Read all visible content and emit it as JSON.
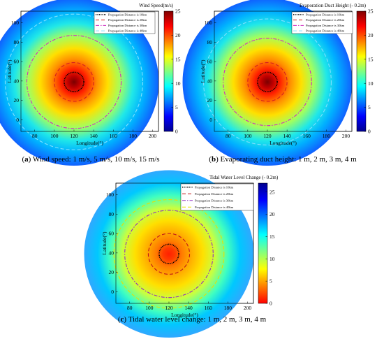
{
  "chart_data": [
    {
      "type": "heatmap",
      "panel_label": "(a)",
      "caption": "Wind speed: 1 m/s, 5 m/s, 10 m/s, 15 m/s",
      "colorbar_title": "Wind Speed(m/s)",
      "xlabel": "Longitude(°)",
      "ylabel": "Latitude(°)",
      "colormap": "jet",
      "xlim": [
        66,
        206
      ],
      "ylim": [
        -12,
        112
      ],
      "xticks": [
        80,
        100,
        120,
        140,
        160,
        180,
        200
      ],
      "yticks": [
        0,
        20,
        40,
        60,
        80,
        100
      ],
      "clim": [
        0,
        25
      ],
      "colorbar_ticks": [
        0,
        5,
        10,
        15,
        20,
        25
      ],
      "field": {
        "center": [
          120,
          39
        ],
        "radius": 89
      },
      "contours": [
        {
          "name": "Propagation Distance is 10km",
          "radius": 10,
          "color": "#000000",
          "dash": "dotted"
        },
        {
          "name": "Propagation Distance is 20km",
          "radius": 20,
          "color": "#d42020",
          "dash": "dashed"
        },
        {
          "name": "Propagation Distance is 30km",
          "radius": 48,
          "color": "#d030c0",
          "dash": "dashdot"
        },
        {
          "name": "Propagation Distance is 40km",
          "radius": 70,
          "color": "#80e0ff",
          "dash": "dashed"
        }
      ]
    },
    {
      "type": "heatmap",
      "panel_label": "(b)",
      "caption": "Evaporating duct height: 1 m, 2 m, 3 m, 4 m",
      "colorbar_title": "Evaporation Duct Height (- 0.2m)",
      "xlabel": "Longitude(°)",
      "ylabel": "Latitude(°)",
      "colormap": "jet",
      "xlim": [
        66,
        206
      ],
      "ylim": [
        -12,
        112
      ],
      "xticks": [
        80,
        100,
        120,
        140,
        160,
        180,
        200
      ],
      "yticks": [
        0,
        20,
        40,
        60,
        80,
        100
      ],
      "clim": [
        0,
        25
      ],
      "colorbar_ticks": [
        0,
        5,
        10,
        15,
        20,
        25
      ],
      "field": {
        "center": [
          120,
          39
        ],
        "radius": 89
      },
      "contours": [
        {
          "name": "Propagation Distance is 10km",
          "radius": 10,
          "color": "#000000",
          "dash": "dotted"
        },
        {
          "name": "Propagation Distance is 20km",
          "radius": 20,
          "color": "#d42020",
          "dash": "dashed"
        },
        {
          "name": "Propagation Distance is 30km",
          "radius": 45,
          "color": "#d030c0",
          "dash": "dashdot"
        },
        {
          "name": "Propagation Distance is 40km",
          "radius": 65,
          "color": "#80e0ff",
          "dash": "dashed"
        }
      ]
    },
    {
      "type": "heatmap",
      "panel_label": "(c)",
      "caption": "Tidal water level change: 1 m, 2 m, 3 m, 4 m",
      "colorbar_title": "Tidal Water Level Change (- 0.2m)",
      "xlabel": "Longitude(°)",
      "ylabel": "Latitude(°)",
      "colormap": "jet_reversed",
      "xlim": [
        66,
        206
      ],
      "ylim": [
        -12,
        112
      ],
      "xticks": [
        80,
        100,
        120,
        140,
        160,
        180,
        200
      ],
      "yticks": [
        0,
        20,
        40,
        60,
        80,
        100
      ],
      "clim": [
        0,
        27
      ],
      "colorbar_ticks": [
        0,
        5,
        10,
        15,
        20,
        25
      ],
      "field": {
        "center": [
          120,
          39
        ],
        "radius": 89
      },
      "contours": [
        {
          "name": "Propagation Distance is 10km",
          "radius": 10,
          "color": "#000000",
          "dash": "dotted"
        },
        {
          "name": "Propagation Distance is 20km",
          "radius": 21,
          "color": "#c01818",
          "dash": "dashed"
        },
        {
          "name": "Propagation Distance is 30km",
          "radius": 45,
          "color": "#9030c0",
          "dash": "dashdot"
        },
        {
          "name": "Propagation Distance is 40km",
          "radius": 56,
          "color": "#e8e000",
          "dash": "dashed"
        }
      ]
    }
  ]
}
